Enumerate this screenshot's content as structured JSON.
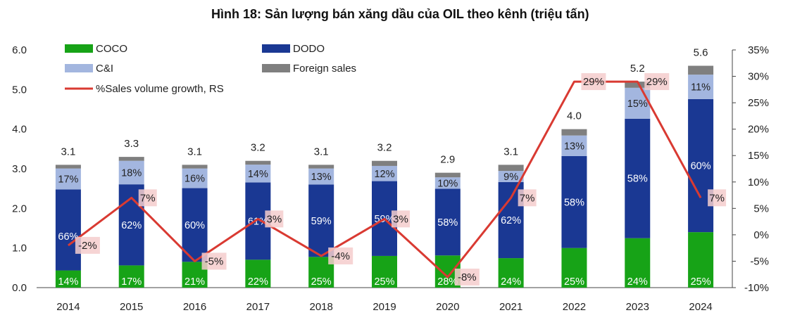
{
  "title": "Hình 18: Sản lượng bán xăng dầu của OIL theo kênh (triệu tấn)",
  "chart_data": {
    "type": "bar",
    "stacked": true,
    "categories": [
      "2014",
      "2015",
      "2016",
      "2017",
      "2018",
      "2019",
      "2020",
      "2021",
      "2022",
      "2023",
      "2024"
    ],
    "ylim": [
      0,
      6
    ],
    "y_ticks": [
      "0.0",
      "1.0",
      "2.0",
      "3.0",
      "4.0",
      "5.0",
      "6.0"
    ],
    "y2lim": [
      -10,
      35
    ],
    "y2_ticks": [
      "-10%",
      "-5%",
      "0%",
      "5%",
      "10%",
      "15%",
      "20%",
      "25%",
      "30%",
      "35%"
    ],
    "totals": [
      3.1,
      3.3,
      3.1,
      3.2,
      3.1,
      3.2,
      2.9,
      3.1,
      4.0,
      5.2,
      5.6
    ],
    "total_labels": [
      "3.1",
      "3.3",
      "3.1",
      "3.2",
      "3.1",
      "3.2",
      "2.9",
      "3.1",
      "4.0",
      "5.2",
      "5.6"
    ],
    "series": [
      {
        "name": "COCO",
        "color": "#17a317",
        "shares": [
          14,
          17,
          21,
          22,
          25,
          25,
          28,
          24,
          25,
          24,
          25
        ],
        "labels": [
          "14%",
          "17%",
          "21%",
          "22%",
          "25%",
          "25%",
          "28%",
          "24%",
          "25%",
          "24%",
          "25%"
        ]
      },
      {
        "name": "DODO",
        "color": "#1a3893",
        "shares": [
          66,
          62,
          60,
          61,
          59,
          59,
          58,
          62,
          58,
          58,
          60
        ],
        "labels": [
          "66%",
          "62%",
          "60%",
          "61%",
          "59%",
          "59%",
          "58%",
          "62%",
          "58%",
          "58%",
          "60%"
        ]
      },
      {
        "name": "C&I",
        "color": "#a3b6df",
        "shares": [
          17,
          18,
          16,
          14,
          13,
          12,
          10,
          9,
          13,
          15,
          11
        ],
        "labels": [
          "17%",
          "18%",
          "16%",
          "14%",
          "13%",
          "12%",
          "10%",
          "9%",
          "13%",
          "15%",
          "11%"
        ]
      },
      {
        "name": "Foreign sales",
        "color": "#7f7f7f",
        "shares": [
          3,
          3,
          3,
          3,
          3,
          4,
          4,
          5,
          4,
          3,
          4
        ],
        "labels": []
      }
    ],
    "line": {
      "name": "%Sales volume growth, RS",
      "color": "#d93a32",
      "values": [
        -2,
        7,
        -5,
        3,
        -4,
        3,
        -8,
        7,
        29,
        29,
        7
      ],
      "labels": [
        "-2%",
        "7%",
        "-5%",
        "3%",
        "-4%",
        "3%",
        "-8%",
        "7%",
        "29%",
        "29%",
        "7%"
      ]
    },
    "legend_position": "top-left"
  }
}
